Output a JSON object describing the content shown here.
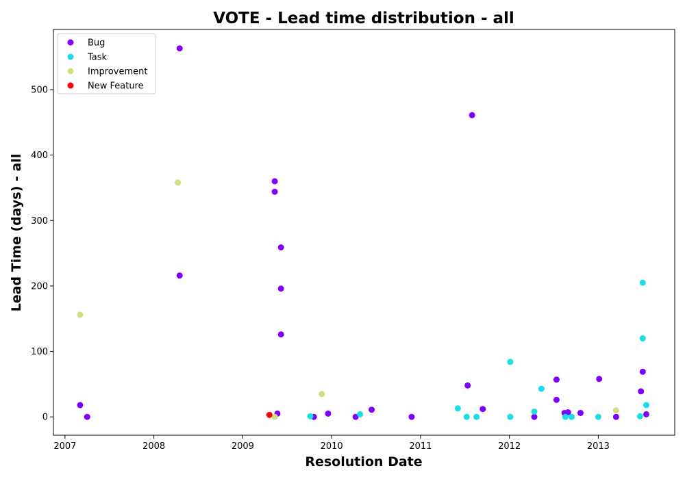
{
  "chart_data": {
    "type": "scatter",
    "title": "VOTE - Lead time distribution - all",
    "xlabel": "Resolution Date",
    "ylabel": "Lead Time (days) - all",
    "xlim": [
      2006.87,
      2013.86
    ],
    "ylim": [
      -28,
      592
    ],
    "x_ticks": [
      2007,
      2008,
      2009,
      2010,
      2011,
      2012,
      2013
    ],
    "y_ticks": [
      0,
      100,
      200,
      300,
      400,
      500
    ],
    "grid": false,
    "legend_position": "top-left",
    "series": [
      {
        "name": "Bug",
        "color": "#8000ff",
        "points": [
          [
            2007.17,
            18
          ],
          [
            2007.25,
            0
          ],
          [
            2008.29,
            563
          ],
          [
            2008.29,
            216
          ],
          [
            2009.36,
            360
          ],
          [
            2009.36,
            344
          ],
          [
            2009.39,
            5
          ],
          [
            2009.43,
            259
          ],
          [
            2009.43,
            196
          ],
          [
            2009.43,
            126
          ],
          [
            2009.8,
            0
          ],
          [
            2009.96,
            5
          ],
          [
            2010.27,
            0
          ],
          [
            2010.45,
            11
          ],
          [
            2010.9,
            0
          ],
          [
            2011.53,
            48
          ],
          [
            2011.58,
            461
          ],
          [
            2011.7,
            12
          ],
          [
            2012.28,
            0
          ],
          [
            2012.53,
            57
          ],
          [
            2012.53,
            26
          ],
          [
            2012.62,
            6
          ],
          [
            2012.66,
            7
          ],
          [
            2012.8,
            6
          ],
          [
            2013.01,
            58
          ],
          [
            2013.2,
            0
          ],
          [
            2013.48,
            39
          ],
          [
            2013.5,
            69
          ],
          [
            2013.54,
            4
          ]
        ]
      },
      {
        "name": "Task",
        "color": "#1adde6",
        "points": [
          [
            2009.76,
            1
          ],
          [
            2010.32,
            4
          ],
          [
            2011.42,
            13
          ],
          [
            2011.52,
            0
          ],
          [
            2011.63,
            0
          ],
          [
            2012.01,
            0
          ],
          [
            2012.01,
            84
          ],
          [
            2012.28,
            8
          ],
          [
            2012.36,
            43
          ],
          [
            2012.63,
            0
          ],
          [
            2012.7,
            0
          ],
          [
            2013.0,
            0
          ],
          [
            2013.47,
            1
          ],
          [
            2013.5,
            205
          ],
          [
            2013.5,
            120
          ],
          [
            2013.54,
            18
          ]
        ]
      },
      {
        "name": "Improvement",
        "color": "#d4dc7f",
        "points": [
          [
            2007.17,
            156
          ],
          [
            2008.27,
            358
          ],
          [
            2009.36,
            0
          ],
          [
            2009.89,
            35
          ],
          [
            2013.2,
            10
          ]
        ]
      },
      {
        "name": "New Feature",
        "color": "#ff0000",
        "points": [
          [
            2009.3,
            3
          ]
        ]
      }
    ]
  }
}
